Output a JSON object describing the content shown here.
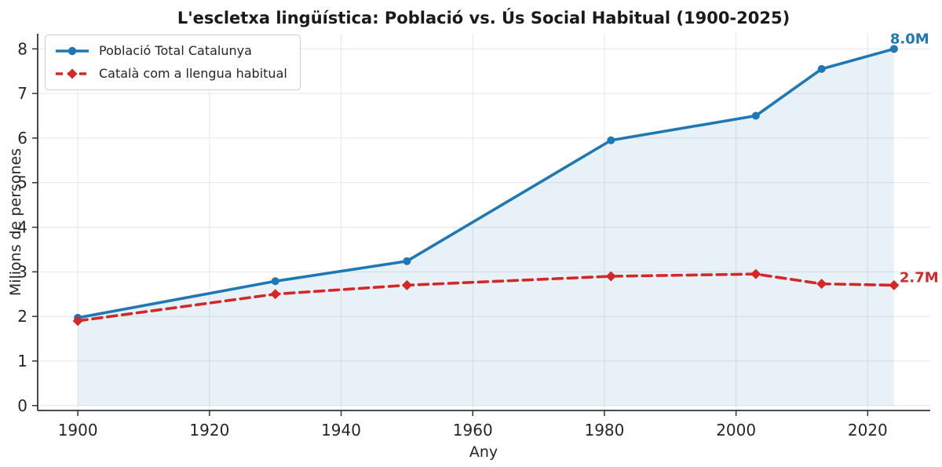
{
  "figure": {
    "title": "L'escletxa lingüística: Població vs. Ús Social Habitual (1900-2025)"
  },
  "chart_data": {
    "type": "line",
    "title": "L'escletxa lingüística: Població vs. Ús Social Habitual (1900-2025)",
    "xlabel": "Any",
    "ylabel": "Milions de persones",
    "x": [
      1900,
      1930,
      1950,
      1981,
      2003,
      2013,
      2024
    ],
    "series": [
      {
        "name": "Població Total Catalunya",
        "values": [
          1.97,
          2.79,
          3.24,
          5.95,
          6.5,
          7.55,
          8.0
        ],
        "color": "#1f77b4",
        "line_style": "solid",
        "marker": "circle",
        "fill_under": true,
        "fill_opacity": 0.1,
        "end_label": "8.0M"
      },
      {
        "name": "Català com a llengua habitual",
        "values": [
          1.9,
          2.5,
          2.7,
          2.9,
          2.95,
          2.73,
          2.7
        ],
        "color": "#d62728",
        "line_style": "dashed",
        "marker": "diamond",
        "fill_under": false,
        "end_label": "2.7M"
      }
    ],
    "x_ticks": [
      1900,
      1920,
      1940,
      1960,
      1980,
      2000,
      2020
    ],
    "y_ticks": [
      0,
      1,
      2,
      3,
      4,
      5,
      6,
      7,
      8
    ],
    "xlim": [
      1893.9,
      2029.5
    ],
    "ylim": [
      -0.11,
      8.34
    ],
    "grid": true,
    "legend_position": "upper-left",
    "colors": {
      "population_line": "#1f77b4",
      "catalan_line": "#d62728",
      "area_fill": "#e9f0f8",
      "gridline": "#e4e7ea"
    }
  }
}
